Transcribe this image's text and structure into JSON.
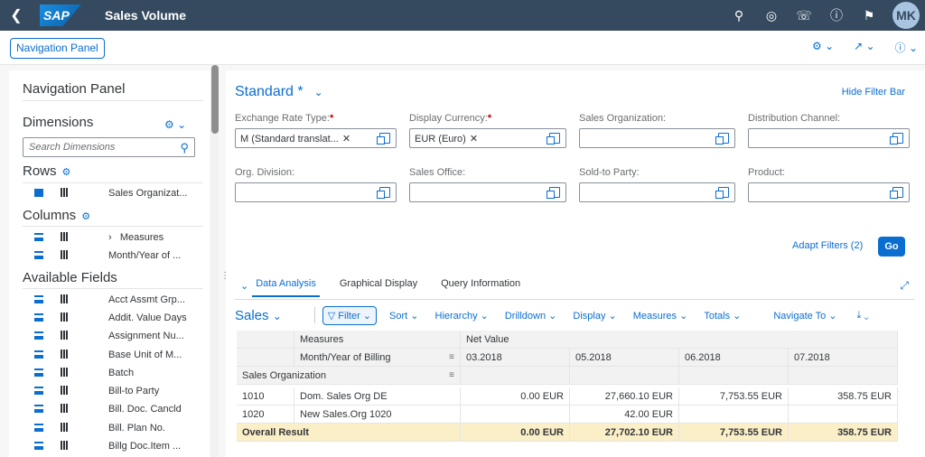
{
  "shell": {
    "back_icon": "back-icon",
    "logo": "SAP",
    "title": "Sales Volume",
    "avatar": "MK",
    "icons": [
      "search-icon",
      "copilot-icon",
      "help-headset-icon",
      "help-icon",
      "bell-icon"
    ]
  },
  "toolbar": {
    "navigation_panel_label": "Navigation Panel"
  },
  "nav_panel": {
    "title": "Navigation Panel",
    "dimensions_label": "Dimensions",
    "search_placeholder": "Search Dimensions",
    "rows_label": "Rows",
    "rows": [
      "Sales Organizat..."
    ],
    "columns_label": "Columns",
    "columns": [
      "Measures",
      "Month/Year of ..."
    ],
    "available_label": "Available Fields",
    "available": [
      "Acct Assmt Grp...",
      "Addit. Value Days",
      "Assignment Nu...",
      "Base Unit of M...",
      "Batch",
      "Bill-to Party",
      "Bill. Doc. Cancld",
      "Bill. Plan No.",
      "Billg Doc.Item ..."
    ]
  },
  "filterbar": {
    "variant": "Standard *",
    "hide_label": "Hide Filter Bar",
    "fields": [
      {
        "label": "Exchange Rate Type:",
        "required": true,
        "token": "M (Standard translat..."
      },
      {
        "label": "Display Currency:",
        "required": true,
        "token": "EUR (Euro)"
      },
      {
        "label": "Sales Organization:",
        "required": false,
        "token": ""
      },
      {
        "label": "Distribution Channel:",
        "required": false,
        "token": ""
      },
      {
        "label": "Org. Division:",
        "required": false,
        "token": ""
      },
      {
        "label": "Sales Office:",
        "required": false,
        "token": ""
      },
      {
        "label": "Sold-to Party:",
        "required": false,
        "token": ""
      },
      {
        "label": "Product:",
        "required": false,
        "token": ""
      }
    ],
    "adapt_label": "Adapt Filters (2)",
    "go_label": "Go"
  },
  "tabs": [
    "Data Analysis",
    "Graphical Display",
    "Query Information"
  ],
  "analysis_toolbar": {
    "view": "Sales",
    "items": [
      "Filter",
      "Sort",
      "Hierarchy",
      "Drilldown",
      "Display",
      "Measures",
      "Totals",
      "Navigate To"
    ]
  },
  "grid": {
    "measures_label": "Measures",
    "net_value": "Net Value",
    "month_label": "Month/Year of Billing",
    "months": [
      "03.2018",
      "05.2018",
      "06.2018",
      "07.2018"
    ],
    "sales_org_label": "Sales Organization",
    "rows": [
      {
        "code": "1010",
        "name": "Dom. Sales Org DE",
        "values": [
          "0.00 EUR",
          "27,660.10 EUR",
          "7,753.55 EUR",
          "358.75 EUR"
        ]
      },
      {
        "code": "1020",
        "name": "New Sales.Org 1020",
        "values": [
          "",
          "42.00 EUR",
          "",
          ""
        ]
      }
    ],
    "total": {
      "label": "Overall Result",
      "values": [
        "0.00 EUR",
        "27,702.10 EUR",
        "7,753.55 EUR",
        "358.75 EUR"
      ]
    }
  }
}
